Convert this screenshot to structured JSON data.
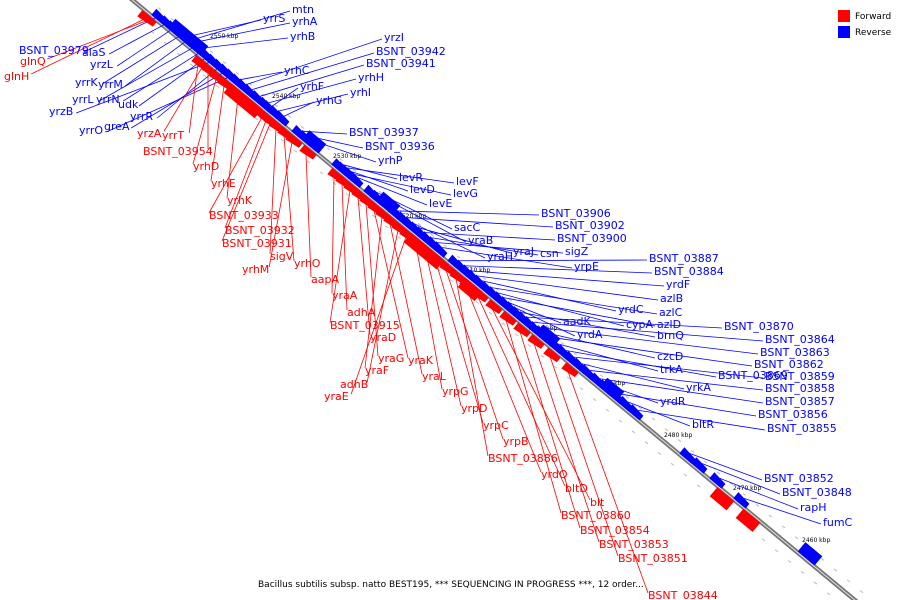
{
  "legend": [
    {
      "label": "Forward",
      "color": "#ff0000"
    },
    {
      "label": "Reverse",
      "color": "#0000ff"
    }
  ],
  "caption": "Bacillus subtilis subsp. natto BEST195, *** SEQUENCING IN PROGRESS ***, 12 order...",
  "kbp_ticks": [
    "2550 kbp",
    "2540 kbp",
    "2530 kbp",
    "2520 kbp",
    "2510 kbp",
    "2500 kbp",
    "2490 kbp",
    "2480 kbp",
    "2470 kbp",
    "2460 kbp"
  ],
  "reverse_genes": [
    "mtn",
    "yrrS",
    "yrhA",
    "yrhB",
    "BSNT_03979",
    "alaS",
    "yrzL",
    "yrrK",
    "yrrM",
    "yrrL",
    "yrrN",
    "udk",
    "yrzB",
    "yrrR",
    "greA",
    "yrrO",
    "yrhC",
    "yrzI",
    "BSNT_03942",
    "BSNT_03941",
    "yrhH",
    "yrhF",
    "yrhI",
    "yrhG",
    "BSNT_03937",
    "BSNT_03936",
    "yrhP",
    "levR",
    "levF",
    "levD",
    "levG",
    "levE",
    "sacC",
    "yraB",
    "BSNT_03906",
    "BSNT_03902",
    "yraH",
    "yraJ",
    "BSNT_03900",
    "csn",
    "sigZ",
    "yrpE",
    "BSNT_03887",
    "BSNT_03884",
    "yrdF",
    "azlB",
    "yrdC",
    "azlC",
    "cypA",
    "azlD",
    "aadK",
    "yrdA",
    "brnQ",
    "BSNT_03870",
    "BSNT_03864",
    "BSNT_03863",
    "czcD",
    "BSNT_03862",
    "trkA",
    "BSNT_03869",
    "BSNT_03859",
    "yrkA",
    "BSNT_03858",
    "BSNT_03857",
    "yrdR",
    "BSNT_03856",
    "bltR",
    "BSNT_03855",
    "BSNT_03852",
    "BSNT_03848",
    "rapH",
    "fumC"
  ],
  "forward_genes": [
    "glnQ",
    "glnH",
    "yrrT",
    "yrzA",
    "BSNT_03954",
    "yrhD",
    "yrhE",
    "yrhK",
    "BSNT_03933",
    "BSNT_03932",
    "BSNT_03931",
    "sigV",
    "yrhO",
    "yrhM",
    "aapA",
    "yraA",
    "adhA",
    "BSNT_03915",
    "yraD",
    "yraG",
    "yraK",
    "yraF",
    "yraL",
    "adhB",
    "yraE",
    "yrpG",
    "yrpD",
    "yrpC",
    "yrpB",
    "BSNT_03886",
    "yrdQ",
    "bltD",
    "blt",
    "BSNT_03860",
    "BSNT_03854",
    "BSNT_03853",
    "BSNT_03851",
    "BSNT_03844"
  ]
}
